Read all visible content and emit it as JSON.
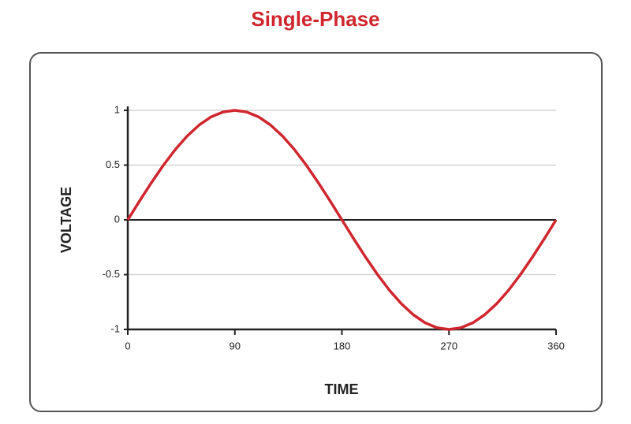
{
  "chart_data": {
    "type": "line",
    "title": "Single-Phase",
    "x_label": "TIME",
    "y_label": "VOLTAGE",
    "x": [
      0,
      10,
      20,
      30,
      40,
      50,
      60,
      70,
      80,
      90,
      100,
      110,
      120,
      130,
      140,
      150,
      160,
      170,
      180,
      190,
      200,
      210,
      220,
      230,
      240,
      250,
      260,
      270,
      280,
      290,
      300,
      310,
      320,
      330,
      340,
      350,
      360
    ],
    "series": [
      {
        "color": "#d0262e",
        "values": [
          0,
          0.174,
          0.342,
          0.5,
          0.643,
          0.766,
          0.866,
          0.94,
          0.985,
          1,
          0.985,
          0.94,
          0.866,
          0.766,
          0.643,
          0.5,
          0.342,
          0.174,
          0,
          -0.174,
          -0.342,
          -0.5,
          -0.643,
          -0.766,
          -0.866,
          -0.94,
          -0.985,
          -1,
          -0.985,
          -0.94,
          -0.866,
          -0.766,
          -0.643,
          -0.5,
          -0.342,
          -0.174,
          0
        ]
      }
    ],
    "xlim": [
      0,
      360
    ],
    "xticks": [
      0,
      90,
      180,
      270,
      360
    ],
    "ylim": [
      -1,
      1
    ],
    "yticks": [
      -1,
      -0.5,
      0,
      0.5,
      1
    ],
    "grid": true
  }
}
